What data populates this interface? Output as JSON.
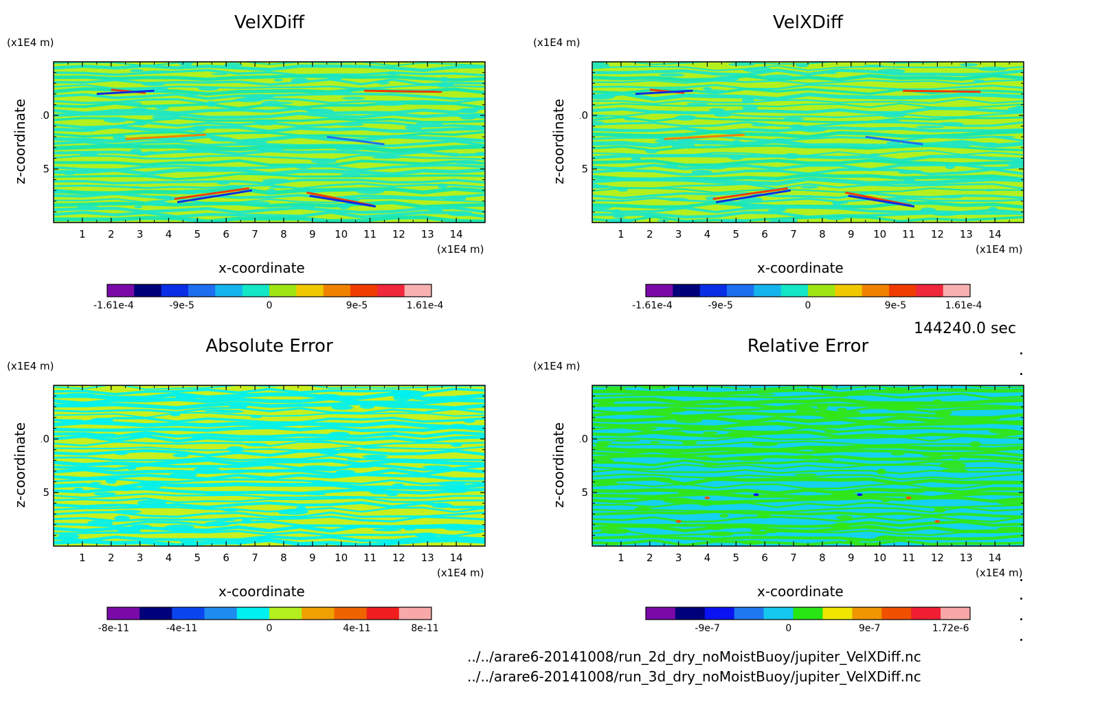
{
  "chart_data": [
    {
      "type": "heatmap",
      "title": "VelXDiff",
      "xlabel": "x-coordinate",
      "ylabel": "z-coordinate",
      "x_unit": "(x1E4 m)",
      "y_unit": "(x1E4 m)",
      "xlim": [
        0,
        15
      ],
      "ylim": [
        0,
        15
      ],
      "xticks": [
        "1",
        "2",
        "3",
        "4",
        "5",
        "6",
        "7",
        "8",
        "9",
        "10",
        "11",
        "12",
        "13",
        "14"
      ],
      "yticks": [
        "5",
        "10"
      ],
      "colorbar_ticks": [
        "-1.61e-4",
        "-9e-5",
        "0",
        "9e-5",
        "1.61e-4"
      ],
      "colorbar_colors": [
        "#7a0aa8",
        "#00007a",
        "#0a2ee6",
        "#1e6ef0",
        "#14b4ec",
        "#14e6c8",
        "#a0e614",
        "#f0c800",
        "#f08200",
        "#f03c00",
        "#f0283c",
        "#f8b0b0"
      ],
      "field_colors": {
        "base": "#b4f01e",
        "band": "#1ee6c8",
        "band2": "#14e6b4"
      }
    },
    {
      "type": "heatmap",
      "title": "VelXDiff",
      "xlabel": "x-coordinate",
      "ylabel": "z-coordinate",
      "x_unit": "(x1E4 m)",
      "y_unit": "(x1E4 m)",
      "xlim": [
        0,
        15
      ],
      "ylim": [
        0,
        15
      ],
      "xticks": [
        "1",
        "2",
        "3",
        "4",
        "5",
        "6",
        "7",
        "8",
        "9",
        "10",
        "11",
        "12",
        "13",
        "14"
      ],
      "yticks": [
        "5",
        "10"
      ],
      "colorbar_ticks": [
        "-1.61e-4",
        "-9e-5",
        "0",
        "9e-5",
        "1.61e-4"
      ],
      "colorbar_colors": [
        "#7a0aa8",
        "#00007a",
        "#0a2ee6",
        "#1e6ef0",
        "#14b4ec",
        "#14e6c8",
        "#a0e614",
        "#f0c800",
        "#f08200",
        "#f03c00",
        "#f0283c",
        "#f8b0b0"
      ],
      "field_colors": {
        "base": "#b4f01e",
        "band": "#1ee6c8",
        "band2": "#14e6b4"
      }
    },
    {
      "type": "heatmap",
      "title": "Absolute Error",
      "xlabel": "x-coordinate",
      "ylabel": "z-coordinate",
      "x_unit": "(x1E4 m)",
      "y_unit": "(x1E4 m)",
      "xlim": [
        0,
        15
      ],
      "ylim": [
        0,
        15
      ],
      "xticks": [
        "1",
        "2",
        "3",
        "4",
        "5",
        "6",
        "7",
        "8",
        "9",
        "10",
        "11",
        "12",
        "13",
        "14"
      ],
      "yticks": [
        "5",
        "10"
      ],
      "colorbar_ticks": [
        "-8e-11",
        "-4e-11",
        "0",
        "4e-11",
        "8e-11"
      ],
      "colorbar_colors": [
        "#7a0aa8",
        "#00007a",
        "#0a46f0",
        "#1e8cf0",
        "#00f0f0",
        "#b4f01e",
        "#f0a000",
        "#f06400",
        "#f01e1e",
        "#f8a8a8"
      ],
      "field_colors": {
        "base": "#c8f01e",
        "band": "#00f0f0",
        "band2": "#00f0f0"
      }
    },
    {
      "type": "heatmap",
      "title": "Relative Error",
      "xlabel": "x-coordinate",
      "ylabel": "z-coordinate",
      "x_unit": "(x1E4 m)",
      "y_unit": "(x1E4 m)",
      "xlim": [
        0,
        15
      ],
      "ylim": [
        0,
        15
      ],
      "xticks": [
        "1",
        "2",
        "3",
        "4",
        "5",
        "6",
        "7",
        "8",
        "9",
        "10",
        "11",
        "12",
        "13",
        "14"
      ],
      "yticks": [
        "5",
        "10"
      ],
      "colorbar_ticks": [
        "-9e-7",
        "0",
        "9e-7",
        "1.72e-6"
      ],
      "colorbar_colors": [
        "#7a0aa8",
        "#00007a",
        "#0a14f0",
        "#1e78f0",
        "#14c8f0",
        "#28e614",
        "#f0e600",
        "#f09600",
        "#f05000",
        "#f01e32",
        "#f8a8a8"
      ],
      "field_colors": {
        "base": "#14d2f0",
        "band": "#32e614",
        "band2": "#32e614"
      }
    }
  ],
  "footer": {
    "time": "144240.0 sec",
    "file1": "../../arare6-20141008/run_2d_dry_noMoistBuoy/jupiter_VelXDiff.nc",
    "file2": "../../arare6-20141008/run_3d_dry_noMoistBuoy/jupiter_VelXDiff.nc"
  }
}
